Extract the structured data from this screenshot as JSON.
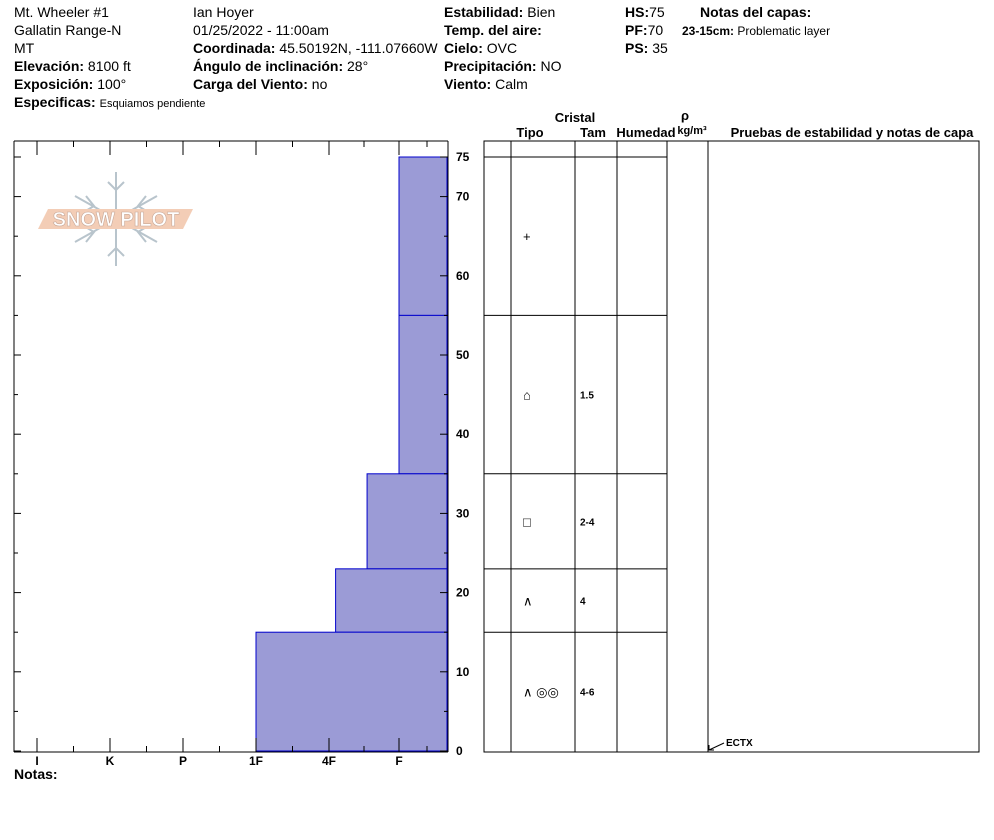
{
  "header": {
    "location": "Mt. Wheeler #1",
    "range": "Gallatin Range-N",
    "state": "MT",
    "elevation_label": "Elevación:",
    "elevation_value": "8100 ft",
    "aspect_label": "Exposición:",
    "aspect_value": "100°",
    "specifics_label": "Especificas:",
    "specifics_value": "Esquiamos pendiente",
    "observer": "Ian Hoyer",
    "datetime": "01/25/2022 - 11:00am",
    "coord_label": "Coordinada:",
    "coord_value": "45.50192N, -111.07660W",
    "incline_label": "Ángulo de inclinación:",
    "incline_value": "28°",
    "wind_load_label": "Carga del Viento:",
    "wind_load_value": "no",
    "stability_label": "Estabilidad:",
    "stability_value": "Bien",
    "air_temp_label": "Temp. del aire:",
    "air_temp_value": "",
    "sky_label": "Cielo:",
    "sky_value": "OVC",
    "precip_label": "Precipitación:",
    "precip_value": "NO",
    "wind_label": "Viento:",
    "wind_value": "Calm",
    "hs_label": "HS:",
    "hs_value": "75",
    "pf_label": "PF:",
    "pf_value": "70",
    "ps_label": "PS:",
    "ps_value": "35",
    "notes_title": "Notas del capas:",
    "layer_note_range": "23-15cm:",
    "layer_note_text": "Problematic layer"
  },
  "logo_text": "SNOW PILOT",
  "table_headers": {
    "cristal": "Cristal",
    "tipo": "Tipo",
    "tam": "Tam",
    "humedad": "Humedad",
    "rho": "ρ",
    "density_unit": "kg/m³",
    "tests": "Pruebas de estabilidad y notas de capa"
  },
  "notes_label": "Notas:",
  "colors": {
    "bar_fill": "#9b9bd6",
    "bar_stroke": "#0000cc",
    "axis": "#000000"
  },
  "chart_data": {
    "type": "bar",
    "orientation": "horizontal",
    "xlabel": "",
    "ylabel": "",
    "hardness_ticks": [
      "I",
      "K",
      "P",
      "1F",
      "4F",
      "F"
    ],
    "ylim": [
      0,
      75
    ],
    "y_ticks": [
      0,
      10,
      20,
      30,
      40,
      50,
      60,
      70,
      75
    ],
    "layers": [
      {
        "top": 75,
        "bottom": 55,
        "hardness": "F",
        "hardness_value": 6.0,
        "grain": "+",
        "size": ""
      },
      {
        "top": 55,
        "bottom": 35,
        "hardness": "F",
        "hardness_value": 6.0,
        "grain": "⌂",
        "size": "1.5"
      },
      {
        "top": 35,
        "bottom": 23,
        "hardness": "F+",
        "hardness_value": 6.67,
        "grain": "□",
        "size": "2-4"
      },
      {
        "top": 23,
        "bottom": 15,
        "hardness": "4F-",
        "hardness_value": 7.33,
        "grain": "∧",
        "size": "4"
      },
      {
        "top": 15,
        "bottom": 0,
        "hardness": "1F",
        "hardness_value": 9.0,
        "grain": "∧ ◎◎",
        "size": "4-6"
      }
    ],
    "test_results": [
      {
        "depth": 0,
        "label": "ECTX"
      }
    ]
  }
}
